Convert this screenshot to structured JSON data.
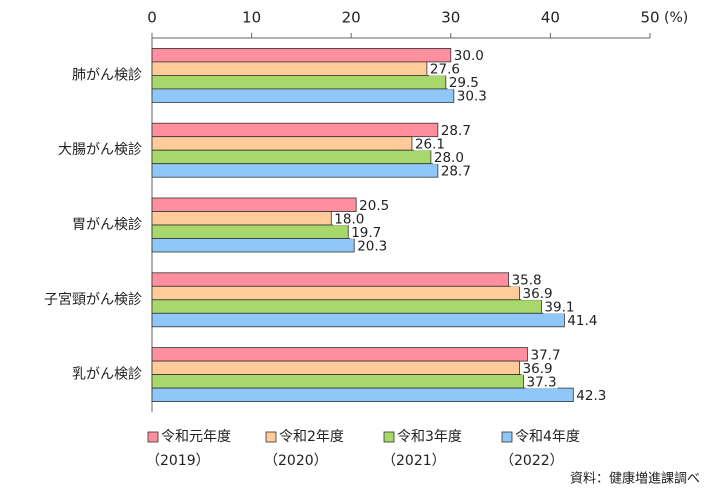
{
  "chart_data": {
    "type": "bar",
    "orientation": "horizontal",
    "categories": [
      "肺がん検診",
      "大腸がん検診",
      "胃がん検診",
      "子宮頸がん検診",
      "乳がん検診"
    ],
    "series": [
      {
        "name": "令和元年度",
        "period": "（2019）",
        "color": "#ff8f9f",
        "values": [
          30.0,
          28.7,
          20.5,
          35.8,
          37.7
        ],
        "value_labels": [
          "30.0",
          "28.7",
          "20.5",
          "35.8",
          "37.7"
        ]
      },
      {
        "name": "令和2年度",
        "period": "（2020）",
        "color": "#ffcc99",
        "values": [
          27.6,
          26.1,
          18.0,
          36.9,
          36.9
        ],
        "value_labels": [
          "27.6",
          "26.1",
          "18.0",
          "36.9",
          "36.9"
        ]
      },
      {
        "name": "令和3年度",
        "period": "（2021）",
        "color": "#a8d86c",
        "values": [
          29.5,
          28.0,
          19.7,
          39.1,
          37.3
        ],
        "value_labels": [
          "29.5",
          "28.0",
          "19.7",
          "39.1",
          "37.3"
        ]
      },
      {
        "name": "令和4年度",
        "period": "（2022）",
        "color": "#8fc8f8",
        "values": [
          30.3,
          28.7,
          20.3,
          41.4,
          42.3
        ],
        "value_labels": [
          "30.3",
          "28.7",
          "20.3",
          "41.4",
          "42.3"
        ]
      }
    ],
    "xlim": [
      0,
      50
    ],
    "xticks": [
      0,
      10,
      20,
      30,
      40,
      50
    ],
    "x_unit": "(%)",
    "grid": false,
    "legend": "bottom",
    "source": "資料：健康増進課調べ"
  }
}
